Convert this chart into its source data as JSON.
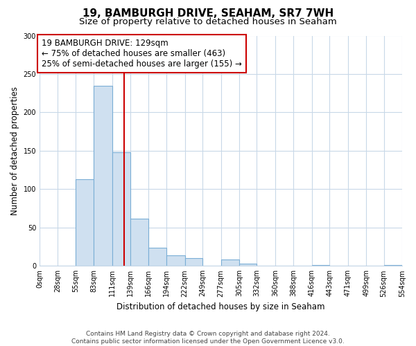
{
  "title": "19, BAMBURGH DRIVE, SEAHAM, SR7 7WH",
  "subtitle": "Size of property relative to detached houses in Seaham",
  "xlabel": "Distribution of detached houses by size in Seaham",
  "ylabel": "Number of detached properties",
  "bin_edges": [
    0,
    28,
    55,
    83,
    111,
    139,
    166,
    194,
    222,
    249,
    277,
    305,
    332,
    360,
    388,
    416,
    443,
    471,
    499,
    526,
    554
  ],
  "bar_heights": [
    0,
    0,
    113,
    235,
    148,
    62,
    24,
    14,
    10,
    0,
    8,
    3,
    0,
    0,
    0,
    1,
    0,
    0,
    0,
    1
  ],
  "tick_labels": [
    "0sqm",
    "28sqm",
    "55sqm",
    "83sqm",
    "111sqm",
    "139sqm",
    "166sqm",
    "194sqm",
    "222sqm",
    "249sqm",
    "277sqm",
    "305sqm",
    "332sqm",
    "360sqm",
    "388sqm",
    "416sqm",
    "443sqm",
    "471sqm",
    "499sqm",
    "526sqm",
    "554sqm"
  ],
  "bar_color": "#cfe0f0",
  "bar_edge_color": "#7aaed6",
  "property_line_x": 129,
  "property_line_color": "#cc0000",
  "annotation_line1": "19 BAMBURGH DRIVE: 129sqm",
  "annotation_line2": "← 75% of detached houses are smaller (463)",
  "annotation_line3": "25% of semi-detached houses are larger (155) →",
  "annotation_box_color": "#ffffff",
  "annotation_box_edge_color": "#cc0000",
  "ylim": [
    0,
    300
  ],
  "yticks": [
    0,
    50,
    100,
    150,
    200,
    250,
    300
  ],
  "footer_text": "Contains HM Land Registry data © Crown copyright and database right 2024.\nContains public sector information licensed under the Open Government Licence v3.0.",
  "background_color": "#ffffff",
  "grid_color": "#c8d8e8",
  "title_fontsize": 11,
  "subtitle_fontsize": 9.5,
  "axis_label_fontsize": 8.5,
  "tick_fontsize": 7,
  "annotation_fontsize": 8.5,
  "footer_fontsize": 6.5
}
